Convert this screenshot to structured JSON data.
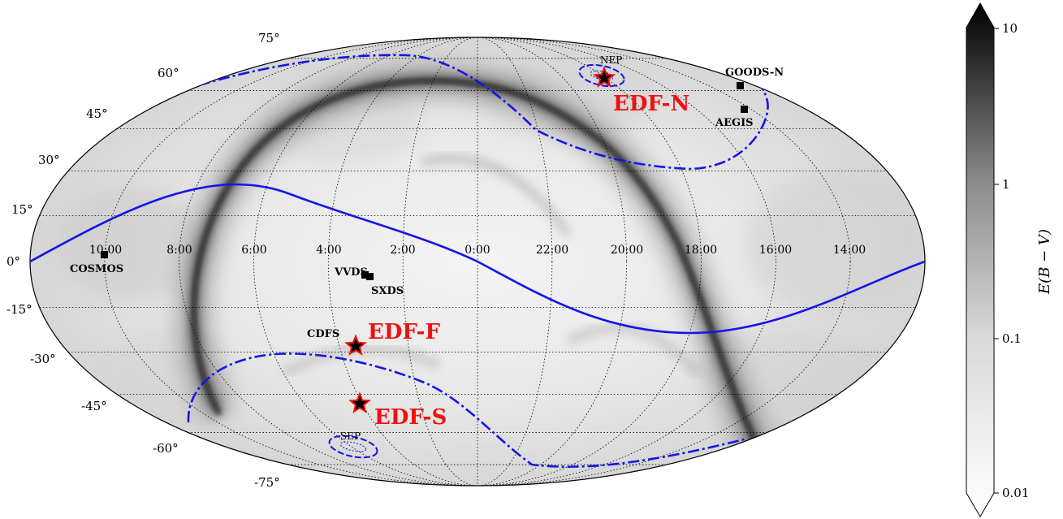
{
  "latitude_labels": [
    "75°",
    "60°",
    "45°",
    "30°",
    "15°",
    "0°",
    "-15°",
    "-30°",
    "-45°",
    "-60°",
    "-75°"
  ],
  "ra_labels": [
    "10:00",
    "8:00",
    "6:00",
    "4:00",
    "2:00",
    "0:00",
    "22:00",
    "20:00",
    "18:00",
    "16:00",
    "14:00"
  ],
  "fields": {
    "cosmos": "COSMOS",
    "vvds": "VVDS",
    "sxds": "SXDS",
    "cdfs": "CDFS",
    "goods_n": "GOODS-N",
    "aegis": "AEGIS"
  },
  "poles": {
    "nep": "NEP",
    "sep": "SEP"
  },
  "deep_fields": {
    "edf_n": "EDF-N",
    "edf_f": "EDF-F",
    "edf_s": "EDF-S"
  },
  "colorbar": {
    "title": "E(B − V)",
    "ticks": [
      "10",
      "1",
      "0.1",
      "0.01"
    ],
    "scale": "log"
  },
  "colors": {
    "marker": "#000000",
    "deep_field": "#ee1111",
    "curves": "#1515e6",
    "dust_low": "#ffffff",
    "dust_high": "#000000"
  },
  "icons": {
    "field_marker": "square-marker-icon",
    "deep_field_marker": "star-marker-icon"
  }
}
